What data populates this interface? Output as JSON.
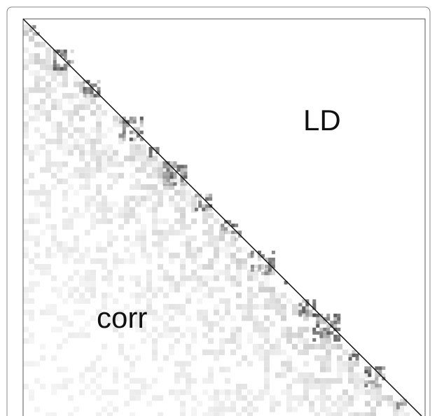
{
  "figure": {
    "upper_label": "LD",
    "lower_label": "corr"
  }
}
